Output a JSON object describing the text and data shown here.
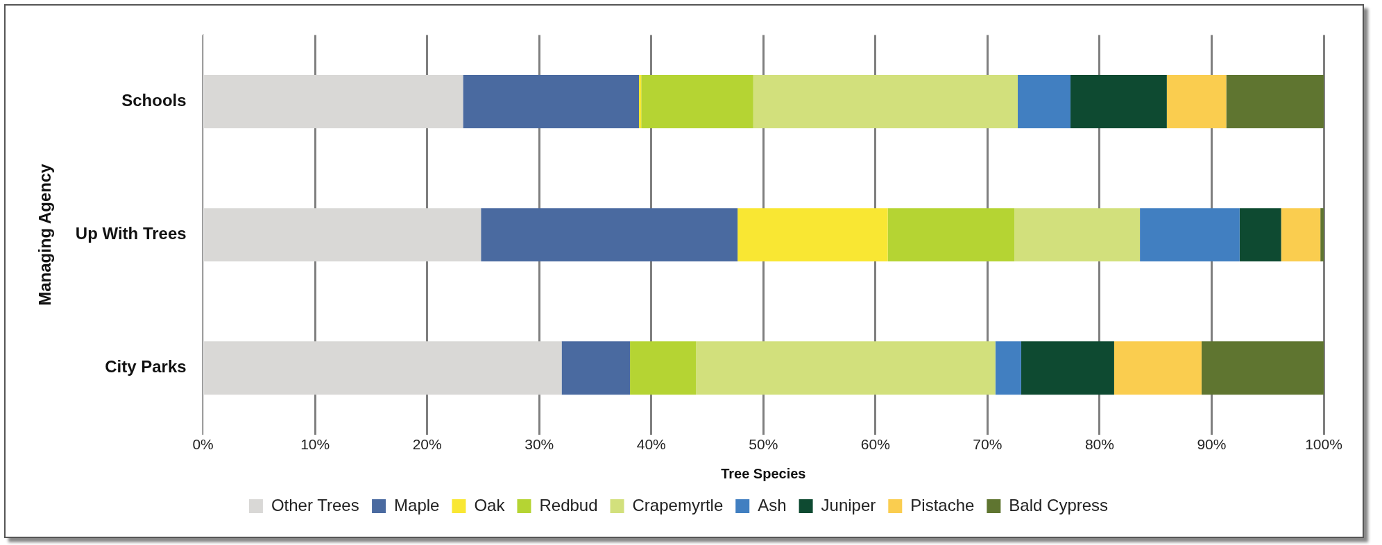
{
  "chart_data": {
    "type": "bar",
    "orientation": "horizontal",
    "stacked": true,
    "xlabel": "Tree Species",
    "ylabel": "Managing Agency",
    "categories": [
      "Schools",
      "Up With Trees",
      "City Parks"
    ],
    "series": [
      {
        "name": "Other Trees",
        "color": "#d9d8d6",
        "values": [
          23.2,
          24.8,
          32.0
        ]
      },
      {
        "name": "Maple",
        "color": "#4a6aa0",
        "values": [
          15.7,
          22.9,
          6.1
        ]
      },
      {
        "name": "Oak",
        "color": "#f9e733",
        "values": [
          0.2,
          13.4,
          0
        ]
      },
      {
        "name": "Redbud",
        "color": "#b5d433",
        "values": [
          10.0,
          11.3,
          5.9
        ]
      },
      {
        "name": "Crapemyrtle",
        "color": "#d2e07c",
        "values": [
          23.6,
          11.2,
          26.7
        ]
      },
      {
        "name": "Ash",
        "color": "#417fc1",
        "values": [
          4.7,
          8.9,
          2.3
        ]
      },
      {
        "name": "Juniper",
        "color": "#0e4a31",
        "values": [
          8.6,
          3.7,
          8.3
        ]
      },
      {
        "name": "Pistache",
        "color": "#facd4f",
        "values": [
          5.3,
          3.5,
          7.8
        ]
      },
      {
        "name": "Bald Cypress",
        "color": "#5f7530",
        "values": [
          8.7,
          0.3,
          10.9
        ]
      }
    ],
    "xlim": [
      0,
      100
    ],
    "xticks": [
      {
        "value": 0,
        "label": "0%"
      },
      {
        "value": 10,
        "label": "10%"
      },
      {
        "value": 20,
        "label": "20%"
      },
      {
        "value": 30,
        "label": "30%"
      },
      {
        "value": 40,
        "label": "40%"
      },
      {
        "value": 50,
        "label": "50%"
      },
      {
        "value": 60,
        "label": "60%"
      },
      {
        "value": 70,
        "label": "70%"
      },
      {
        "value": 80,
        "label": "80%"
      },
      {
        "value": 90,
        "label": "90%"
      },
      {
        "value": 100,
        "label": "100%"
      }
    ],
    "grid": "x",
    "legend": "bottom"
  }
}
